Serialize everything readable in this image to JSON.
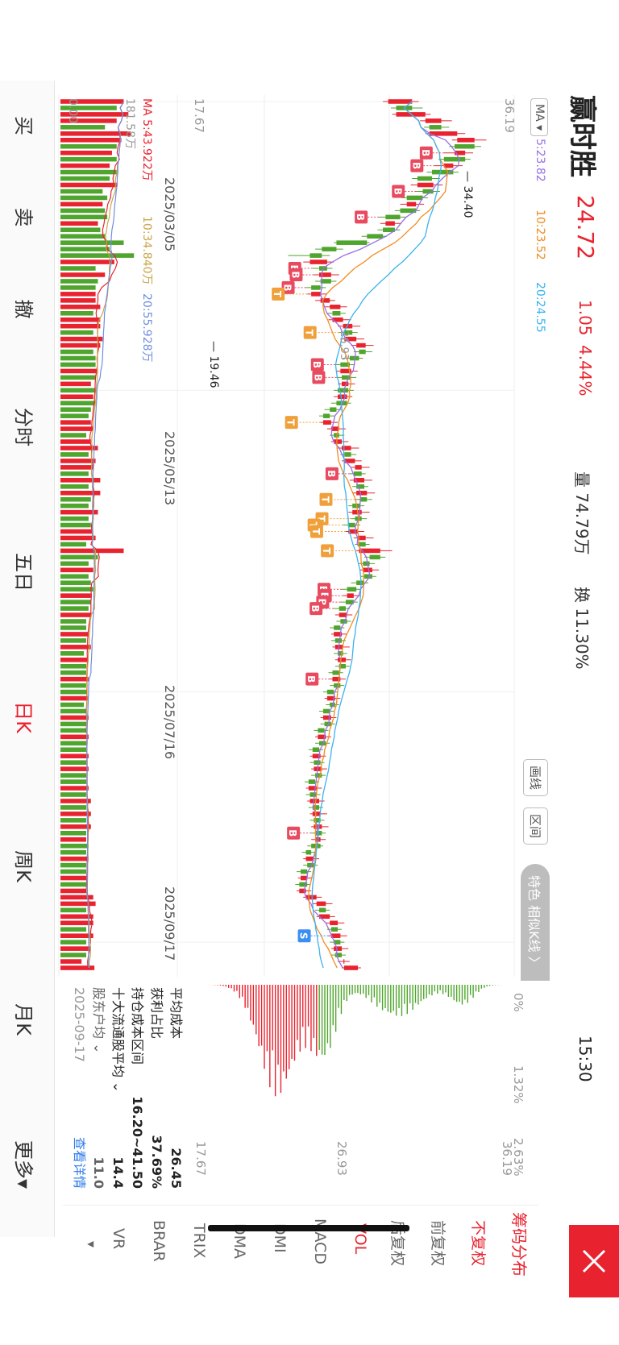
{
  "header": {
    "stock_name": "赢时胜",
    "price": "24.72",
    "change": "1.05",
    "change_pct": "4.44%",
    "volume": "量 74.79万",
    "turnover": "换 11.30%",
    "time": "15:30"
  },
  "ma_legend": {
    "button": "MA",
    "ma5": "5:23.82",
    "ma10": "10:23.52",
    "ma20": "20:24.55"
  },
  "vol_legend": {
    "title": "MA",
    "ma5": "5:43.922万",
    "ma10": "10:34.840万",
    "ma20": "20:55.928万",
    "max_label": "181.58万",
    "zero": "0.00"
  },
  "tools": {
    "draw": "画线",
    "range": "区间",
    "feature": "特色 相似K线 〉"
  },
  "chart_data": {
    "type": "candlestick",
    "y_axis_ticks": [
      "36.19",
      "26.93",
      "17.67"
    ],
    "ylim": [
      17.67,
      36.19
    ],
    "x_axis_ticks": [
      "2025/03/05",
      "2025/05/13",
      "2025/07/16",
      "2025/09/17"
    ],
    "annotations": {
      "high": "34.40",
      "low": "19.46"
    },
    "candles": [
      {
        "x": "03/05",
        "o": 27.0,
        "c": 28.8,
        "h": 29.3,
        "l": 26.6
      },
      {
        "x": "03/06",
        "o": 28.8,
        "c": 27.6,
        "h": 29.6,
        "l": 27.2
      },
      {
        "x": "03/07",
        "o": 27.6,
        "c": 29.8,
        "h": 30.2,
        "l": 27.3
      },
      {
        "x": "03/10",
        "o": 29.8,
        "c": 31.0,
        "h": 31.8,
        "l": 29.4
      },
      {
        "x": "03/11",
        "o": 31.0,
        "c": 30.1,
        "h": 31.6,
        "l": 29.7
      },
      {
        "x": "03/12",
        "o": 30.1,
        "c": 32.2,
        "h": 32.8,
        "l": 29.8
      },
      {
        "x": "03/13",
        "o": 32.2,
        "c": 33.5,
        "h": 34.4,
        "l": 31.8
      },
      {
        "x": "03/14",
        "o": 33.5,
        "c": 32.0,
        "h": 34.0,
        "l": 31.6
      },
      {
        "x": "03/17",
        "o": 32.0,
        "c": 32.8,
        "h": 33.4,
        "l": 31.2
      },
      {
        "x": "03/18",
        "o": 32.8,
        "c": 31.2,
        "h": 33.2,
        "l": 30.8
      },
      {
        "x": "03/19",
        "o": 31.2,
        "c": 31.9,
        "h": 32.6,
        "l": 30.5
      },
      {
        "x": "03/20",
        "o": 31.9,
        "c": 30.3,
        "h": 32.3,
        "l": 29.9
      },
      {
        "x": "03/21",
        "o": 30.3,
        "c": 29.2,
        "h": 30.9,
        "l": 28.8
      },
      {
        "x": "03/24",
        "o": 29.2,
        "c": 30.4,
        "h": 31.1,
        "l": 28.7
      },
      {
        "x": "03/25",
        "o": 30.4,
        "c": 29.6,
        "h": 30.9,
        "l": 29.1
      },
      {
        "x": "03/26",
        "o": 29.6,
        "c": 28.4,
        "h": 30.0,
        "l": 28.0
      },
      {
        "x": "03/27",
        "o": 28.4,
        "c": 29.1,
        "h": 29.7,
        "l": 27.9
      },
      {
        "x": "03/28",
        "o": 29.1,
        "c": 27.9,
        "h": 29.4,
        "l": 27.5
      },
      {
        "x": "03/31",
        "o": 27.9,
        "c": 26.8,
        "h": 28.3,
        "l": 26.3
      },
      {
        "x": "04/01",
        "o": 26.8,
        "c": 27.5,
        "h": 28.0,
        "l": 26.4
      },
      {
        "x": "04/02",
        "o": 27.5,
        "c": 26.6,
        "h": 27.9,
        "l": 26.2
      },
      {
        "x": "04/03",
        "o": 26.6,
        "c": 25.4,
        "h": 26.9,
        "l": 25.0
      },
      {
        "x": "04/07",
        "o": 25.4,
        "c": 23.1,
        "h": 25.6,
        "l": 22.9
      },
      {
        "x": "04/08",
        "o": 23.1,
        "c": 22.0,
        "h": 23.6,
        "l": 21.5
      },
      {
        "x": "04/09",
        "o": 22.0,
        "c": 21.1,
        "h": 22.6,
        "l": 19.46
      },
      {
        "x": "04/10",
        "o": 21.1,
        "c": 22.4,
        "h": 22.9,
        "l": 20.6
      },
      {
        "x": "04/11",
        "o": 22.4,
        "c": 21.8,
        "h": 22.8,
        "l": 21.3
      },
      {
        "x": "04/14",
        "o": 21.8,
        "c": 22.7,
        "h": 23.3,
        "l": 21.4
      },
      {
        "x": "04/15",
        "o": 22.7,
        "c": 21.9,
        "h": 23.1,
        "l": 21.5
      },
      {
        "x": "04/16",
        "o": 21.9,
        "c": 21.2,
        "h": 22.3,
        "l": 20.8
      },
      {
        "x": "04/17",
        "o": 21.2,
        "c": 21.9,
        "h": 22.4,
        "l": 20.9
      },
      {
        "x": "04/18",
        "o": 21.9,
        "c": 22.6,
        "h": 23.0,
        "l": 21.5
      },
      {
        "x": "04/21",
        "o": 22.6,
        "c": 23.4,
        "h": 23.9,
        "l": 22.2
      },
      {
        "x": "04/22",
        "o": 23.4,
        "c": 22.8,
        "h": 23.8,
        "l": 22.4
      },
      {
        "x": "04/23",
        "o": 22.8,
        "c": 23.6,
        "h": 24.2,
        "l": 22.5
      },
      {
        "x": "04/24",
        "o": 23.6,
        "c": 24.3,
        "h": 24.9,
        "l": 23.2
      },
      {
        "x": "04/25",
        "o": 24.3,
        "c": 23.7,
        "h": 24.7,
        "l": 23.3
      },
      {
        "x": "04/28",
        "o": 23.7,
        "c": 24.6,
        "h": 25.2,
        "l": 23.4
      },
      {
        "x": "04/29",
        "o": 24.6,
        "c": 25.3,
        "h": 25.9,
        "l": 24.2
      },
      {
        "x": "04/30",
        "o": 25.3,
        "c": 24.8,
        "h": 25.8,
        "l": 24.4
      },
      {
        "x": "05/06",
        "o": 24.8,
        "c": 24.1,
        "h": 25.1,
        "l": 23.6
      },
      {
        "x": "05/07",
        "o": 24.1,
        "c": 23.4,
        "h": 24.5,
        "l": 23.0
      },
      {
        "x": "05/08",
        "o": 23.4,
        "c": 24.2,
        "h": 24.7,
        "l": 23.1
      },
      {
        "x": "05/09",
        "o": 24.2,
        "c": 23.5,
        "h": 24.6,
        "l": 23.1
      },
      {
        "x": "05/12",
        "o": 23.5,
        "c": 24.0,
        "h": 24.5,
        "l": 23.2
      },
      {
        "x": "05/13",
        "o": 24.0,
        "c": 23.2,
        "h": 24.4,
        "l": 22.9
      },
      {
        "x": "05/14",
        "o": 23.2,
        "c": 23.9,
        "h": 24.3,
        "l": 22.9
      },
      {
        "x": "05/15",
        "o": 23.9,
        "c": 23.1,
        "h": 24.2,
        "l": 22.7
      },
      {
        "x": "05/16",
        "o": 23.1,
        "c": 22.6,
        "h": 23.5,
        "l": 22.2
      },
      {
        "x": "05/19",
        "o": 22.6,
        "c": 22.1,
        "h": 23.0,
        "l": 21.8
      },
      {
        "x": "05/20",
        "o": 22.1,
        "c": 22.7,
        "h": 23.2,
        "l": 21.9
      },
      {
        "x": "05/21",
        "o": 22.7,
        "c": 23.3,
        "h": 23.8,
        "l": 22.4
      },
      {
        "x": "05/22",
        "o": 23.3,
        "c": 22.9,
        "h": 23.7,
        "l": 22.6
      },
      {
        "x": "05/23",
        "o": 22.9,
        "c": 23.5,
        "h": 24.0,
        "l": 22.7
      },
      {
        "x": "05/26",
        "o": 23.5,
        "c": 24.2,
        "h": 24.8,
        "l": 23.2
      },
      {
        "x": "05/27",
        "o": 24.2,
        "c": 23.7,
        "h": 24.6,
        "l": 23.4
      },
      {
        "x": "05/28",
        "o": 23.7,
        "c": 24.5,
        "h": 25.0,
        "l": 23.5
      },
      {
        "x": "05/29",
        "o": 24.5,
        "c": 25.0,
        "h": 25.6,
        "l": 24.2
      },
      {
        "x": "05/30",
        "o": 25.0,
        "c": 24.4,
        "h": 25.3,
        "l": 24.1
      },
      {
        "x": "06/03",
        "o": 24.4,
        "c": 25.2,
        "h": 25.8,
        "l": 24.1
      },
      {
        "x": "06/04",
        "o": 25.2,
        "c": 24.6,
        "h": 25.5,
        "l": 24.3
      },
      {
        "x": "06/05",
        "o": 24.6,
        "c": 25.4,
        "h": 26.0,
        "l": 24.3
      },
      {
        "x": "06/06",
        "o": 25.4,
        "c": 24.9,
        "h": 25.8,
        "l": 24.5
      },
      {
        "x": "06/09",
        "o": 24.9,
        "c": 24.3,
        "h": 25.2,
        "l": 24.0
      },
      {
        "x": "06/10",
        "o": 24.3,
        "c": 25.0,
        "h": 25.6,
        "l": 24.0
      },
      {
        "x": "06/11",
        "o": 25.0,
        "c": 24.5,
        "h": 25.4,
        "l": 24.2
      },
      {
        "x": "06/12",
        "o": 24.5,
        "c": 24.0,
        "h": 24.9,
        "l": 23.6
      },
      {
        "x": "06/13",
        "o": 24.0,
        "c": 24.7,
        "h": 25.2,
        "l": 23.8
      },
      {
        "x": "06/16",
        "o": 24.7,
        "c": 25.3,
        "h": 25.9,
        "l": 24.4
      },
      {
        "x": "06/17",
        "o": 25.3,
        "c": 24.8,
        "h": 25.6,
        "l": 24.5
      },
      {
        "x": "06/18",
        "o": 24.8,
        "c": 26.4,
        "h": 27.3,
        "l": 24.6
      },
      {
        "x": "06/19",
        "o": 26.4,
        "c": 25.6,
        "h": 26.8,
        "l": 25.2
      },
      {
        "x": "06/20",
        "o": 25.6,
        "c": 25.1,
        "h": 26.0,
        "l": 24.8
      },
      {
        "x": "06/23",
        "o": 25.1,
        "c": 25.8,
        "h": 26.3,
        "l": 24.9
      },
      {
        "x": "06/24",
        "o": 25.8,
        "c": 25.2,
        "h": 26.1,
        "l": 24.9
      },
      {
        "x": "06/25",
        "o": 25.2,
        "c": 24.6,
        "h": 25.5,
        "l": 24.2
      },
      {
        "x": "06/26",
        "o": 24.6,
        "c": 23.9,
        "h": 24.9,
        "l": 23.5
      },
      {
        "x": "06/27",
        "o": 23.9,
        "c": 24.4,
        "h": 24.9,
        "l": 23.6
      },
      {
        "x": "06/30",
        "o": 24.4,
        "c": 23.8,
        "h": 24.7,
        "l": 23.4
      },
      {
        "x": "07/01",
        "o": 23.8,
        "c": 23.3,
        "h": 24.1,
        "l": 22.9
      },
      {
        "x": "07/02",
        "o": 23.3,
        "c": 23.9,
        "h": 24.3,
        "l": 23.0
      },
      {
        "x": "07/03",
        "o": 23.9,
        "c": 23.4,
        "h": 24.2,
        "l": 23.1
      },
      {
        "x": "07/04",
        "o": 23.4,
        "c": 22.9,
        "h": 23.7,
        "l": 22.6
      },
      {
        "x": "07/07",
        "o": 22.9,
        "c": 23.5,
        "h": 23.9,
        "l": 22.7
      },
      {
        "x": "07/08",
        "o": 23.5,
        "c": 23.0,
        "h": 23.8,
        "l": 22.7
      },
      {
        "x": "07/09",
        "o": 23.0,
        "c": 23.6,
        "h": 24.1,
        "l": 22.8
      },
      {
        "x": "07/10",
        "o": 23.6,
        "c": 23.2,
        "h": 23.9,
        "l": 22.9
      },
      {
        "x": "07/11",
        "o": 23.2,
        "c": 23.8,
        "h": 24.2,
        "l": 23.0
      },
      {
        "x": "07/14",
        "o": 23.8,
        "c": 23.3,
        "h": 24.1,
        "l": 23.0
      },
      {
        "x": "07/15",
        "o": 23.3,
        "c": 22.8,
        "h": 23.6,
        "l": 22.5
      },
      {
        "x": "07/16",
        "o": 22.8,
        "c": 23.4,
        "h": 23.8,
        "l": 22.6
      },
      {
        "x": "07/17",
        "o": 23.4,
        "c": 22.9,
        "h": 23.7,
        "l": 22.6
      },
      {
        "x": "07/18",
        "o": 22.9,
        "c": 22.4,
        "h": 23.2,
        "l": 22.1
      },
      {
        "x": "07/21",
        "o": 22.4,
        "c": 23.0,
        "h": 23.4,
        "l": 22.2
      },
      {
        "x": "07/22",
        "o": 23.0,
        "c": 22.6,
        "h": 23.3,
        "l": 22.3
      },
      {
        "x": "07/23",
        "o": 22.6,
        "c": 22.1,
        "h": 22.9,
        "l": 21.8
      },
      {
        "x": "07/24",
        "o": 22.1,
        "c": 22.7,
        "h": 23.1,
        "l": 21.9
      },
      {
        "x": "07/25",
        "o": 22.7,
        "c": 22.2,
        "h": 23.0,
        "l": 21.9
      },
      {
        "x": "07/28",
        "o": 22.2,
        "c": 21.7,
        "h": 22.5,
        "l": 21.4
      },
      {
        "x": "07/29",
        "o": 21.7,
        "c": 22.3,
        "h": 22.7,
        "l": 21.5
      },
      {
        "x": "07/30",
        "o": 22.3,
        "c": 21.8,
        "h": 22.6,
        "l": 21.5
      },
      {
        "x": "07/31",
        "o": 21.8,
        "c": 21.3,
        "h": 22.1,
        "l": 21.0
      },
      {
        "x": "08/01",
        "o": 21.3,
        "c": 21.9,
        "h": 22.3,
        "l": 21.1
      },
      {
        "x": "08/04",
        "o": 21.9,
        "c": 21.4,
        "h": 22.2,
        "l": 21.1
      },
      {
        "x": "08/05",
        "o": 21.4,
        "c": 22.0,
        "h": 22.4,
        "l": 21.2
      },
      {
        "x": "08/06",
        "o": 22.0,
        "c": 21.5,
        "h": 22.3,
        "l": 21.2
      },
      {
        "x": "08/07",
        "o": 21.5,
        "c": 21.0,
        "h": 21.8,
        "l": 20.7
      },
      {
        "x": "08/08",
        "o": 21.0,
        "c": 21.6,
        "h": 22.0,
        "l": 20.8
      },
      {
        "x": "08/11",
        "o": 21.6,
        "c": 21.1,
        "h": 21.9,
        "l": 20.8
      },
      {
        "x": "08/12",
        "o": 21.1,
        "c": 21.8,
        "h": 22.2,
        "l": 20.9
      },
      {
        "x": "08/13",
        "o": 21.8,
        "c": 21.3,
        "h": 22.1,
        "l": 21.0
      },
      {
        "x": "08/14",
        "o": 21.3,
        "c": 21.9,
        "h": 22.4,
        "l": 21.1
      },
      {
        "x": "08/15",
        "o": 21.9,
        "c": 21.4,
        "h": 22.2,
        "l": 21.1
      },
      {
        "x": "08/18",
        "o": 21.4,
        "c": 22.0,
        "h": 22.5,
        "l": 21.2
      },
      {
        "x": "08/19",
        "o": 22.0,
        "c": 21.5,
        "h": 22.3,
        "l": 21.2
      },
      {
        "x": "08/20",
        "o": 21.5,
        "c": 21.9,
        "h": 22.3,
        "l": 21.2
      },
      {
        "x": "08/21",
        "o": 21.9,
        "c": 21.2,
        "h": 22.1,
        "l": 20.9
      },
      {
        "x": "08/22",
        "o": 21.2,
        "c": 20.8,
        "h": 21.6,
        "l": 20.5
      },
      {
        "x": "08/25",
        "o": 20.8,
        "c": 21.4,
        "h": 21.8,
        "l": 20.6
      },
      {
        "x": "08/26",
        "o": 21.4,
        "c": 20.9,
        "h": 21.7,
        "l": 20.6
      },
      {
        "x": "08/27",
        "o": 20.9,
        "c": 20.4,
        "h": 21.2,
        "l": 20.1
      },
      {
        "x": "08/28",
        "o": 20.4,
        "c": 20.9,
        "h": 21.3,
        "l": 20.2
      },
      {
        "x": "08/29",
        "o": 20.9,
        "c": 20.3,
        "h": 21.1,
        "l": 20.0
      },
      {
        "x": "09/01",
        "o": 20.3,
        "c": 20.8,
        "h": 21.2,
        "l": 20.1
      },
      {
        "x": "09/02",
        "o": 20.8,
        "c": 21.6,
        "h": 22.0,
        "l": 20.6
      },
      {
        "x": "09/03",
        "o": 21.6,
        "c": 22.3,
        "h": 22.8,
        "l": 21.3
      },
      {
        "x": "09/04",
        "o": 22.3,
        "c": 21.8,
        "h": 22.6,
        "l": 21.5
      },
      {
        "x": "09/05",
        "o": 21.8,
        "c": 22.6,
        "h": 23.0,
        "l": 21.6
      },
      {
        "x": "09/08",
        "o": 22.6,
        "c": 23.2,
        "h": 23.7,
        "l": 22.3
      },
      {
        "x": "09/09",
        "o": 23.2,
        "c": 22.7,
        "h": 23.5,
        "l": 22.4
      },
      {
        "x": "09/10",
        "o": 22.7,
        "c": 23.4,
        "h": 23.9,
        "l": 22.5
      },
      {
        "x": "09/11",
        "o": 23.4,
        "c": 22.9,
        "h": 23.7,
        "l": 22.6
      },
      {
        "x": "09/12",
        "o": 22.9,
        "c": 23.5,
        "h": 24.0,
        "l": 22.7
      },
      {
        "x": "09/15",
        "o": 23.5,
        "c": 23.0,
        "h": 23.8,
        "l": 22.7
      },
      {
        "x": "09/16",
        "o": 23.67,
        "c": 23.7,
        "h": 24.1,
        "l": 23.2
      },
      {
        "x": "09/17",
        "o": 23.67,
        "c": 24.72,
        "h": 24.95,
        "l": 23.5
      }
    ],
    "signals": [
      {
        "i": 8,
        "t": "B"
      },
      {
        "i": 10,
        "t": "B"
      },
      {
        "i": 14,
        "t": "B"
      },
      {
        "i": 18,
        "t": "B"
      },
      {
        "i": 26,
        "t": "B"
      },
      {
        "i": 27,
        "t": "B"
      },
      {
        "i": 29,
        "t": "B"
      },
      {
        "i": 41,
        "t": "B"
      },
      {
        "i": 43,
        "t": "B"
      },
      {
        "i": 58,
        "t": "B"
      },
      {
        "i": 76,
        "t": "B"
      },
      {
        "i": 77,
        "t": "B"
      },
      {
        "i": 78,
        "t": "B"
      },
      {
        "i": 79,
        "t": "B"
      },
      {
        "i": 90,
        "t": "B"
      },
      {
        "i": 114,
        "t": "B"
      },
      {
        "i": 30,
        "t": "T"
      },
      {
        "i": 36,
        "t": "T"
      },
      {
        "i": 50,
        "t": "T"
      },
      {
        "i": 62,
        "t": "T"
      },
      {
        "i": 65,
        "t": "T"
      },
      {
        "i": 66,
        "t": "T"
      },
      {
        "i": 67,
        "t": "T"
      },
      {
        "i": 70,
        "t": "T"
      },
      {
        "i": 130,
        "t": "S"
      }
    ]
  },
  "chip_panel": {
    "pct_ticks": [
      "0%",
      "1.32%",
      "2.63%"
    ],
    "price_ticks": [
      "36.19",
      "26.93",
      "17.67"
    ],
    "avg_cost_label": "平均成本",
    "avg_cost": "26.45",
    "profit_label": "获利占比",
    "profit": "37.69%",
    "range_label": "持仓成本区间",
    "range": "16.20~41.50",
    "top10_label": "十大流通股平均",
    "top10": "14.4",
    "extra_label": "股东户均",
    "extra": "11.0",
    "date": "2025-09-17",
    "detail_link": "查看详情"
  },
  "sidebar": {
    "items": [
      {
        "label": "筹码分布",
        "active": true
      },
      {
        "label": "不复权",
        "active": true
      },
      {
        "label": "前复权",
        "active": false
      },
      {
        "label": "后复权",
        "active": false
      },
      {
        "label": "VOL",
        "active": true
      },
      {
        "label": "MACD",
        "active": false
      },
      {
        "label": "DMI",
        "active": false
      },
      {
        "label": "DMA",
        "active": false
      },
      {
        "label": "TRIX",
        "active": false
      },
      {
        "label": "BRAR",
        "active": false
      },
      {
        "label": "VR",
        "active": false
      }
    ],
    "more_arrow": "▾"
  },
  "bottom_tabs": [
    {
      "label": "买",
      "active": false
    },
    {
      "label": "卖",
      "active": false
    },
    {
      "label": "撤",
      "active": false
    },
    {
      "label": "分时",
      "active": false
    },
    {
      "label": "五日",
      "active": false
    },
    {
      "label": "日K",
      "active": true
    },
    {
      "label": "周K",
      "active": false
    },
    {
      "label": "月K",
      "active": false
    },
    {
      "label": "更多▾",
      "active": false
    }
  ],
  "colors": {
    "up": "#e8232f",
    "down": "#4fa52d",
    "ma5": "#9b6fe6",
    "ma10": "#f08c24",
    "ma20": "#3bb3f0",
    "vol_ma5": "#e8232f",
    "vol_ma10": "#c8a64b",
    "vol_ma20": "#6f8fe0",
    "buy": "#e84a5f",
    "t_sig": "#f0a03a",
    "sell": "#3b8ff0"
  }
}
